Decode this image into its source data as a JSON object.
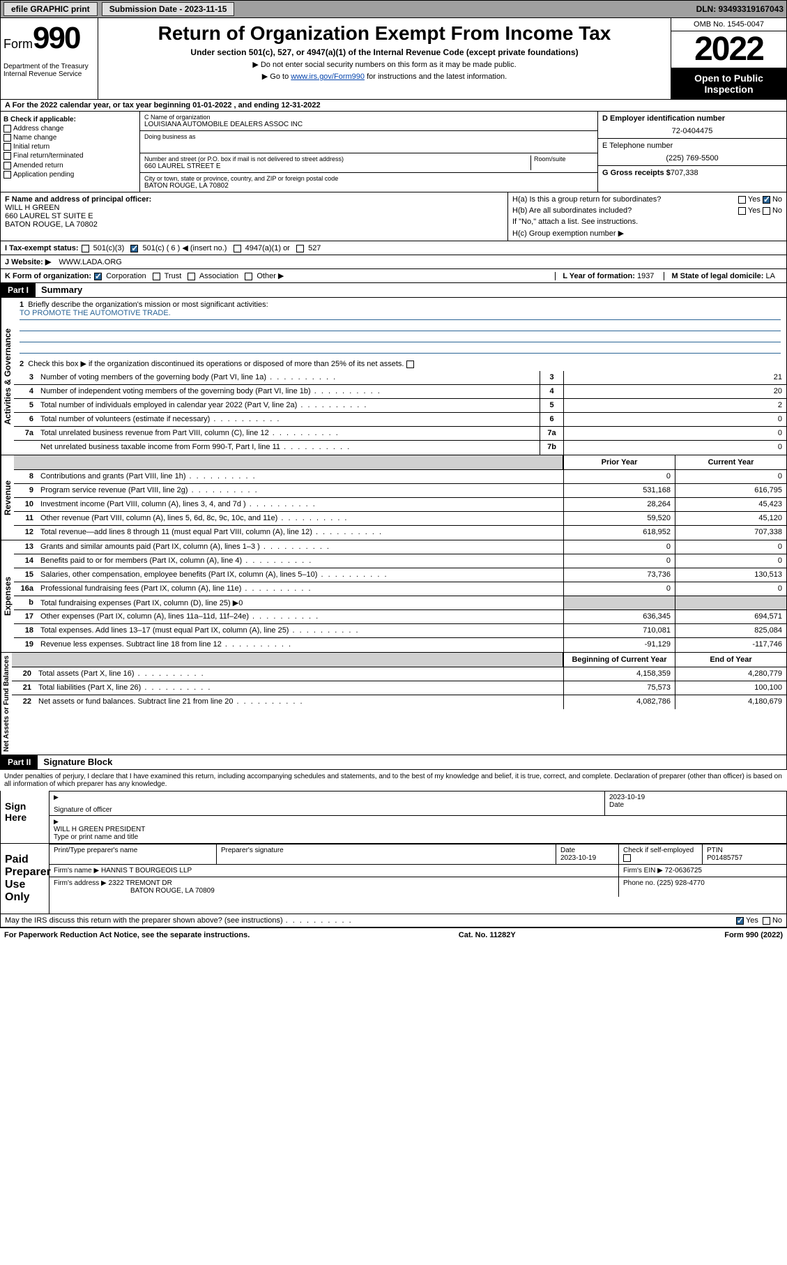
{
  "topbar": {
    "efile": "efile GRAPHIC print",
    "submission_label": "Submission Date - 2023-11-15",
    "dln": "DLN: 93493319167043"
  },
  "header": {
    "form_label": "Form",
    "form_num": "990",
    "dept": "Department of the Treasury Internal Revenue Service",
    "title": "Return of Organization Exempt From Income Tax",
    "sub": "Under section 501(c), 527, or 4947(a)(1) of the Internal Revenue Code (except private foundations)",
    "note1": "▶ Do not enter social security numbers on this form as it may be made public.",
    "note2_pre": "▶ Go to ",
    "note2_link": "www.irs.gov/Form990",
    "note2_post": " for instructions and the latest information.",
    "omb": "OMB No. 1545-0047",
    "year": "2022",
    "open": "Open to Public Inspection"
  },
  "row_a": "A For the 2022 calendar year, or tax year beginning 01-01-2022     , and ending 12-31-2022",
  "box_b": {
    "label": "B Check if applicable:",
    "items": [
      "Address change",
      "Name change",
      "Initial return",
      "Final return/terminated",
      "Amended return",
      "Application pending"
    ]
  },
  "box_c": {
    "name_label": "C Name of organization",
    "name": "LOUISIANA AUTOMOBILE DEALERS ASSOC INC",
    "dba_label": "Doing business as",
    "addr_label": "Number and street (or P.O. box if mail is not delivered to street address)",
    "room_label": "Room/suite",
    "addr": "660 LAUREL STREET E",
    "city_label": "City or town, state or province, country, and ZIP or foreign postal code",
    "city": "BATON ROUGE, LA  70802"
  },
  "box_d": {
    "label": "D Employer identification number",
    "value": "72-0404475"
  },
  "box_e": {
    "label": "E Telephone number",
    "value": "(225) 769-5500"
  },
  "box_g": {
    "label": "G Gross receipts $",
    "value": "707,338"
  },
  "box_f": {
    "label": "F  Name and address of principal officer:",
    "name": "WILL H GREEN",
    "addr1": "660 LAUREL ST SUITE E",
    "addr2": "BATON ROUGE, LA  70802"
  },
  "box_h": {
    "ha": "H(a)  Is this a group return for subordinates?",
    "hb": "H(b)  Are all subordinates included?",
    "hb_note": "If \"No,\" attach a list. See instructions.",
    "hc": "H(c)  Group exemption number ▶"
  },
  "row_i": {
    "label": "I   Tax-exempt status:",
    "opts": [
      "501(c)(3)",
      "501(c) ( 6 ) ◀ (insert no.)",
      "4947(a)(1) or",
      "527"
    ]
  },
  "row_j": {
    "label": "J   Website: ▶",
    "value": "WWW.LADA.ORG"
  },
  "row_k": {
    "label": "K Form of organization:",
    "opts": [
      "Corporation",
      "Trust",
      "Association",
      "Other ▶"
    ]
  },
  "row_l": {
    "label": "L Year of formation:",
    "value": "1937"
  },
  "row_m": {
    "label": "M State of legal domicile:",
    "value": "LA"
  },
  "part1": {
    "hdr": "Part I",
    "title": "Summary",
    "q1": "Briefly describe the organization's mission or most significant activities:",
    "mission": "TO PROMOTE THE AUTOMOTIVE TRADE.",
    "q2": "Check this box ▶      if the organization discontinued its operations or disposed of more than 25% of its net assets.",
    "rows_single": [
      {
        "n": "3",
        "d": "Number of voting members of the governing body (Part VI, line 1a)",
        "b": "3",
        "v": "21"
      },
      {
        "n": "4",
        "d": "Number of independent voting members of the governing body (Part VI, line 1b)",
        "b": "4",
        "v": "20"
      },
      {
        "n": "5",
        "d": "Total number of individuals employed in calendar year 2022 (Part V, line 2a)",
        "b": "5",
        "v": "2"
      },
      {
        "n": "6",
        "d": "Total number of volunteers (estimate if necessary)",
        "b": "6",
        "v": "0"
      },
      {
        "n": "7a",
        "d": "Total unrelated business revenue from Part VIII, column (C), line 12",
        "b": "7a",
        "v": "0"
      },
      {
        "n": "",
        "d": "Net unrelated business taxable income from Form 990-T, Part I, line 11",
        "b": "7b",
        "v": "0"
      }
    ],
    "col_hdr": {
      "prior": "Prior Year",
      "current": "Current Year",
      "beg": "Beginning of Current Year",
      "end": "End of Year"
    },
    "revenue": [
      {
        "n": "8",
        "d": "Contributions and grants (Part VIII, line 1h)",
        "p": "0",
        "c": "0"
      },
      {
        "n": "9",
        "d": "Program service revenue (Part VIII, line 2g)",
        "p": "531,168",
        "c": "616,795"
      },
      {
        "n": "10",
        "d": "Investment income (Part VIII, column (A), lines 3, 4, and 7d )",
        "p": "28,264",
        "c": "45,423"
      },
      {
        "n": "11",
        "d": "Other revenue (Part VIII, column (A), lines 5, 6d, 8c, 9c, 10c, and 11e)",
        "p": "59,520",
        "c": "45,120"
      },
      {
        "n": "12",
        "d": "Total revenue—add lines 8 through 11 (must equal Part VIII, column (A), line 12)",
        "p": "618,952",
        "c": "707,338"
      }
    ],
    "expenses": [
      {
        "n": "13",
        "d": "Grants and similar amounts paid (Part IX, column (A), lines 1–3 )",
        "p": "0",
        "c": "0"
      },
      {
        "n": "14",
        "d": "Benefits paid to or for members (Part IX, column (A), line 4)",
        "p": "0",
        "c": "0"
      },
      {
        "n": "15",
        "d": "Salaries, other compensation, employee benefits (Part IX, column (A), lines 5–10)",
        "p": "73,736",
        "c": "130,513"
      },
      {
        "n": "16a",
        "d": "Professional fundraising fees (Part IX, column (A), line 11e)",
        "p": "0",
        "c": "0"
      },
      {
        "n": "b",
        "d": "Total fundraising expenses (Part IX, column (D), line 25) ▶0",
        "p": "",
        "c": "",
        "shade": true
      },
      {
        "n": "17",
        "d": "Other expenses (Part IX, column (A), lines 11a–11d, 11f–24e)",
        "p": "636,345",
        "c": "694,571"
      },
      {
        "n": "18",
        "d": "Total expenses. Add lines 13–17 (must equal Part IX, column (A), line 25)",
        "p": "710,081",
        "c": "825,084"
      },
      {
        "n": "19",
        "d": "Revenue less expenses. Subtract line 18 from line 12",
        "p": "-91,129",
        "c": "-117,746"
      }
    ],
    "netassets": [
      {
        "n": "20",
        "d": "Total assets (Part X, line 16)",
        "p": "4,158,359",
        "c": "4,280,779"
      },
      {
        "n": "21",
        "d": "Total liabilities (Part X, line 26)",
        "p": "75,573",
        "c": "100,100"
      },
      {
        "n": "22",
        "d": "Net assets or fund balances. Subtract line 21 from line 20",
        "p": "4,082,786",
        "c": "4,180,679"
      }
    ],
    "vtabs": {
      "ag": "Activities & Governance",
      "rev": "Revenue",
      "exp": "Expenses",
      "net": "Net Assets or Fund Balances"
    }
  },
  "part2": {
    "hdr": "Part II",
    "title": "Signature Block",
    "decl": "Under penalties of perjury, I declare that I have examined this return, including accompanying schedules and statements, and to the best of my knowledge and belief, it is true, correct, and complete. Declaration of preparer (other than officer) is based on all information of which preparer has any knowledge.",
    "sign_here": "Sign Here",
    "sig_officer": "Signature of officer",
    "date_label": "Date",
    "date": "2023-10-19",
    "officer_name": "WILL H GREEN  PRESIDENT",
    "type_label": "Type or print name and title",
    "paid": "Paid Preparer Use Only",
    "prep_name_label": "Print/Type preparer's name",
    "prep_sig_label": "Preparer's signature",
    "prep_date": "2023-10-19",
    "check_if": "Check        if self-employed",
    "ptin_label": "PTIN",
    "ptin": "P01485757",
    "firm_name_label": "Firm's name    ▶",
    "firm_name": "HANNIS T BOURGEOIS LLP",
    "firm_ein_label": "Firm's EIN ▶",
    "firm_ein": "72-0636725",
    "firm_addr_label": "Firm's address ▶",
    "firm_addr1": "2322 TREMONT DR",
    "firm_addr2": "BATON ROUGE, LA  70809",
    "phone_label": "Phone no.",
    "phone": "(225) 928-4770",
    "discuss": "May the IRS discuss this return with the preparer shown above? (see instructions)"
  },
  "footer": {
    "left": "For Paperwork Reduction Act Notice, see the separate instructions.",
    "mid": "Cat. No. 11282Y",
    "right": "Form 990 (2022)"
  }
}
